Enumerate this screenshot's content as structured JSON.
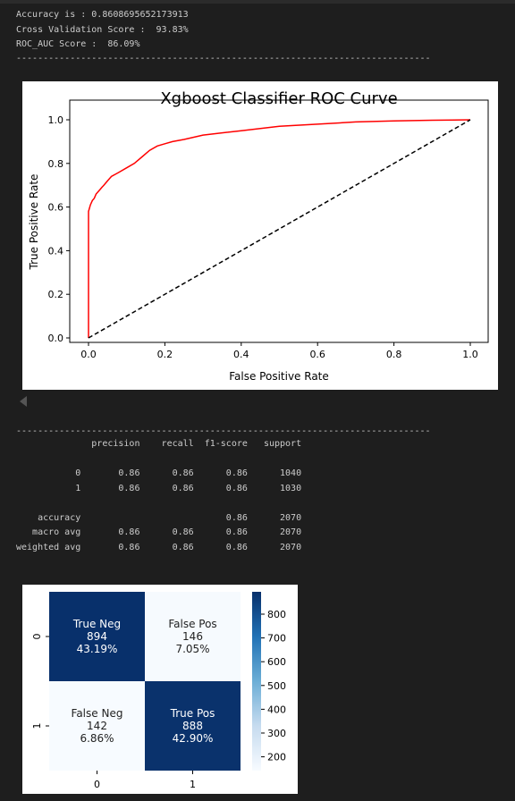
{
  "output_header": {
    "lines": [
      "Accuracy is : 0.8608695652173913",
      "Cross Validation Score :  93.83%",
      "ROC_AUC Score :  86.09%"
    ],
    "divider": "-----------------------------------------------------------------------------"
  },
  "roc_chart": {
    "chart_data": {
      "type": "line",
      "title": "Xgboost Classifier ROC Curve",
      "xlabel": "False Positive Rate",
      "ylabel": "True Positive Rate",
      "xlim": [
        0.0,
        1.0
      ],
      "ylim": [
        0.0,
        1.0
      ],
      "x_ticks": [
        "0.0",
        "0.2",
        "0.4",
        "0.6",
        "0.8",
        "1.0"
      ],
      "y_ticks": [
        "0.0",
        "0.2",
        "0.4",
        "0.6",
        "0.8",
        "1.0"
      ],
      "grid": false,
      "series": [
        {
          "color": "#ff0000",
          "style": "solid",
          "x": [
            0.0,
            0.0,
            0.0,
            0.005,
            0.01,
            0.015,
            0.02,
            0.025,
            0.03,
            0.035,
            0.04,
            0.05,
            0.06,
            0.07,
            0.08,
            0.1,
            0.12,
            0.14,
            0.16,
            0.18,
            0.2,
            0.22,
            0.25,
            0.3,
            0.35,
            0.4,
            0.5,
            0.6,
            0.7,
            0.8,
            0.9,
            1.0
          ],
          "y": [
            0.0,
            0.5,
            0.58,
            0.61,
            0.63,
            0.64,
            0.66,
            0.67,
            0.68,
            0.69,
            0.7,
            0.72,
            0.74,
            0.75,
            0.76,
            0.78,
            0.8,
            0.83,
            0.86,
            0.88,
            0.89,
            0.9,
            0.91,
            0.93,
            0.94,
            0.95,
            0.97,
            0.98,
            0.99,
            0.995,
            0.998,
            1.0
          ]
        },
        {
          "color": "#000000",
          "style": "dashed",
          "x": [
            0.0,
            1.0
          ],
          "y": [
            0.0,
            1.0
          ]
        }
      ]
    }
  },
  "report": {
    "divider": "-----------------------------------------------------------------------------",
    "text": "              precision    recall  f1-score   support\n\n           0       0.86      0.86      0.86      1040\n           1       0.86      0.86      0.86      1030\n\n    accuracy                           0.86      2070\n   macro avg       0.86      0.86      0.86      2070\nweighted avg       0.86      0.86      0.86      2070"
  },
  "confusion_matrix": {
    "chart_data": {
      "type": "heatmap",
      "x_ticks": [
        "0",
        "1"
      ],
      "y_ticks": [
        "0",
        "1"
      ],
      "cells": [
        {
          "row": 0,
          "col": 0,
          "label": "True Neg",
          "count": "894",
          "percent": "43.19%",
          "value": 894
        },
        {
          "row": 0,
          "col": 1,
          "label": "False Pos",
          "count": "146",
          "percent": "7.05%",
          "value": 146
        },
        {
          "row": 1,
          "col": 0,
          "label": "False Neg",
          "count": "142",
          "percent": "6.86%",
          "value": 142
        },
        {
          "row": 1,
          "col": 1,
          "label": "True Pos",
          "count": "888",
          "percent": "42.90%",
          "value": 888
        }
      ],
      "colormap": "Blues",
      "colorbar_ticks": [
        "800",
        "700",
        "600",
        "500",
        "400",
        "300",
        "200"
      ],
      "colorbar_range": [
        142,
        894
      ],
      "colors": {
        "low": "#f7fbff",
        "high": "#08306b"
      }
    }
  }
}
